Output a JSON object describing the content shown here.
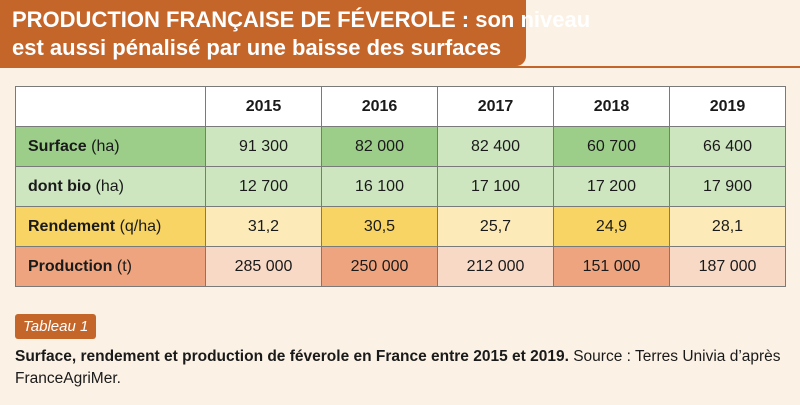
{
  "title": {
    "line1": "PRODUCTION FRANÇAISE DE FÉVEROLE : son niveau",
    "line2": "est aussi pénalisé par une baisse des surfaces"
  },
  "table": {
    "corner": "",
    "years": [
      "2015",
      "2016",
      "2017",
      "2018",
      "2019"
    ],
    "rows": [
      {
        "label": "Surface",
        "unit": "(ha)",
        "values": [
          "91 300",
          "82 000",
          "82 400",
          "60 700",
          "66 400"
        ]
      },
      {
        "label": "dont bio",
        "unit": "(ha)",
        "values": [
          "12 700",
          "16 100",
          "17 100",
          "17 200",
          "17 900"
        ]
      },
      {
        "label": "Rendement",
        "unit": "(q/ha)",
        "values": [
          "31,2",
          "30,5",
          "25,7",
          "24,9",
          "28,1"
        ]
      },
      {
        "label": "Production",
        "unit": "(t)",
        "values": [
          "285 000",
          "250 000",
          "212 000",
          "151 000",
          "187 000"
        ]
      }
    ]
  },
  "colors": {
    "accent": "#c4652a",
    "green_dark": "#9cce8a",
    "green_light": "#cde6c0",
    "yellow_dark": "#f8d464",
    "yellow_light": "#fcebb8",
    "orange_dark": "#eea57f",
    "orange_light": "#f8d9c6",
    "background": "#fbf1e4"
  },
  "tag": "Tableau 1",
  "caption": {
    "bold": "Surface, rendement et production de féverole en France entre 2015 et 2019.",
    "normal": " Source : Terres Univia d’après FranceAgriMer."
  }
}
